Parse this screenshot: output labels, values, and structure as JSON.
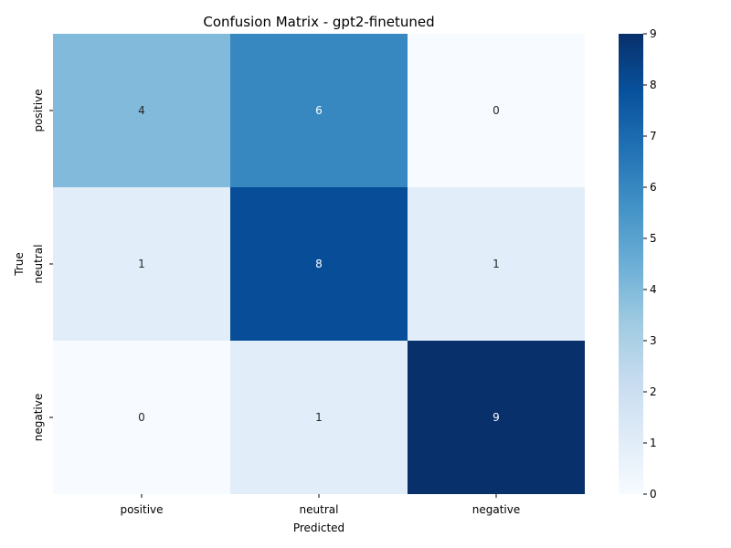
{
  "chart_data": {
    "type": "heatmap",
    "title": "Confusion Matrix - gpt2-finetuned",
    "xlabel": "Predicted",
    "ylabel": "True",
    "x_categories": [
      "positive",
      "neutral",
      "negative"
    ],
    "y_categories": [
      "positive",
      "neutral",
      "negative"
    ],
    "values": [
      [
        4,
        6,
        0
      ],
      [
        1,
        8,
        1
      ],
      [
        0,
        1,
        9
      ]
    ],
    "colorbar": {
      "min": 0,
      "max": 9,
      "ticks": [
        0,
        1,
        2,
        3,
        4,
        5,
        6,
        7,
        8,
        9
      ]
    },
    "colormap": "Blues",
    "colormap_stops": [
      "#f7fbff",
      "#deebf7",
      "#c6dbef",
      "#9ecae1",
      "#6baed6",
      "#4292c6",
      "#2171b5",
      "#08519c",
      "#08306b"
    ],
    "annotations_shown": true,
    "grid": false
  }
}
